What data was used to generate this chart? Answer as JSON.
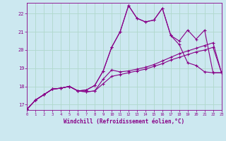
{
  "xlabel": "Windchill (Refroidissement éolien,°C)",
  "bg_color": "#cce8f0",
  "grid_color": "#b0d8cc",
  "line_color": "#880088",
  "xlim": [
    0,
    23
  ],
  "ylim": [
    16.7,
    22.6
  ],
  "xticks": [
    0,
    1,
    2,
    3,
    4,
    5,
    6,
    7,
    8,
    9,
    10,
    11,
    12,
    13,
    14,
    15,
    16,
    17,
    18,
    19,
    20,
    21,
    22,
    23
  ],
  "yticks": [
    17,
    18,
    19,
    20,
    21,
    22
  ],
  "curves": [
    [
      16.75,
      17.25,
      17.55,
      17.85,
      17.9,
      18.0,
      17.75,
      17.8,
      18.05,
      18.85,
      20.15,
      21.0,
      22.45,
      21.75,
      21.55,
      21.65,
      22.3,
      20.8,
      20.3,
      19.3,
      19.15,
      18.8,
      18.75,
      18.75
    ],
    [
      16.75,
      17.25,
      17.55,
      17.85,
      17.9,
      18.0,
      17.75,
      17.8,
      18.05,
      18.85,
      20.15,
      21.0,
      22.45,
      21.75,
      21.55,
      21.65,
      22.3,
      20.8,
      20.5,
      21.1,
      20.6,
      21.1,
      18.75,
      18.75
    ],
    [
      16.75,
      17.25,
      17.55,
      17.85,
      17.9,
      18.0,
      17.75,
      17.7,
      17.75,
      18.4,
      18.9,
      18.8,
      18.85,
      18.95,
      19.05,
      19.2,
      19.4,
      19.6,
      19.8,
      19.95,
      20.1,
      20.25,
      20.4,
      18.75
    ],
    [
      16.75,
      17.25,
      17.55,
      17.85,
      17.9,
      18.0,
      17.75,
      17.7,
      17.75,
      18.15,
      18.55,
      18.65,
      18.75,
      18.85,
      18.95,
      19.1,
      19.25,
      19.45,
      19.6,
      19.75,
      19.9,
      20.0,
      20.15,
      18.75
    ]
  ]
}
